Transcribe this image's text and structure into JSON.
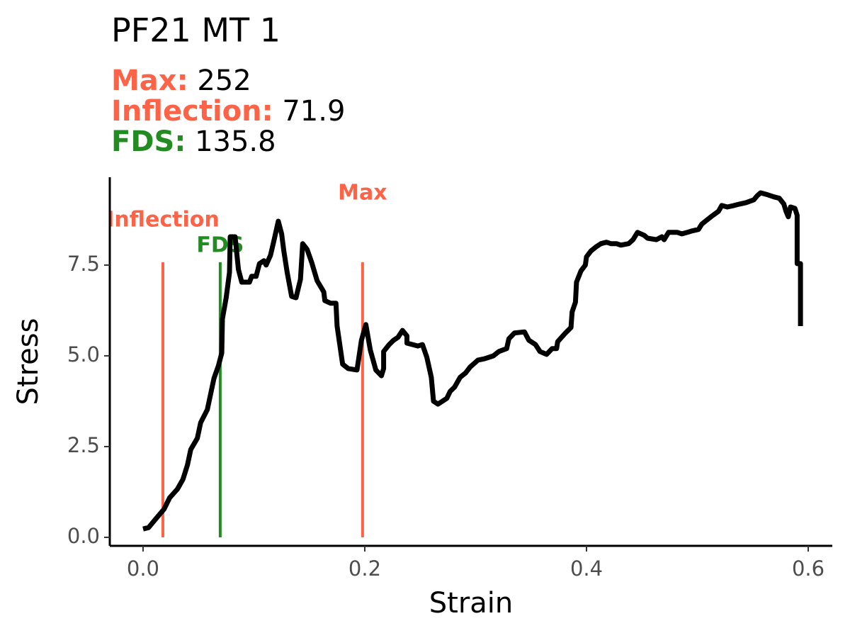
{
  "chart_data": {
    "type": "line",
    "title": "PF21 MT 1",
    "subtitle": [
      {
        "label": "Max:",
        "value": 252,
        "color": "#ff6347"
      },
      {
        "label": "Inflection:",
        "value": 71.9,
        "color": "#ff6347"
      },
      {
        "label": "FDS:",
        "value": 135.8,
        "color": "#228b22"
      }
    ],
    "x_label": "Strain",
    "y_label": "Stress",
    "xlim": [
      -0.03,
      0.6217
    ],
    "ylim": [
      -0.234,
      9.92
    ],
    "xticks": [
      {
        "value": 0,
        "label": "0.0"
      },
      0.2,
      0.4,
      0.6
    ],
    "yticks": [
      {
        "value": 0,
        "label": "0.0"
      },
      2.5,
      {
        "value": 5,
        "label": "5.0"
      },
      7.5
    ],
    "grid": false,
    "annotations": [
      {
        "label": "Inflection",
        "x": 0.0179,
        "y": [
          0,
          7.58
        ],
        "label_y": 8.73,
        "color": "#ff6347"
      },
      {
        "label": "FDS",
        "x": 0.0696,
        "y": [
          0,
          7.58
        ],
        "label_y": 8.03,
        "color": "#228b22"
      },
      {
        "label": "Max",
        "x": 0.198,
        "y": [
          0,
          7.58
        ],
        "label_y": 9.47,
        "color": "#ff6347"
      }
    ],
    "series": [
      {
        "color": "#000000",
        "x": [
          0.0,
          0.005,
          0.0115,
          0.019,
          0.024,
          0.031,
          0.036,
          0.04,
          0.043,
          0.049,
          0.052,
          0.058,
          0.061,
          0.064,
          0.068,
          0.071,
          0.0716,
          0.075,
          0.078,
          0.0786,
          0.083,
          0.086,
          0.089,
          0.096,
          0.098,
          0.102,
          0.105,
          0.109,
          0.111,
          0.115,
          0.118,
          0.122,
          0.125,
          0.127,
          0.13,
          0.134,
          0.138,
          0.142,
          0.144,
          0.148,
          0.152,
          0.157,
          0.163,
          0.164,
          0.169,
          0.174,
          0.175,
          0.18,
          0.185,
          0.193,
          0.197,
          0.201,
          0.205,
          0.21,
          0.215,
          0.217,
          0.217,
          0.222,
          0.226,
          0.23,
          0.234,
          0.238,
          0.238,
          0.248,
          0.252,
          0.256,
          0.26,
          0.262,
          0.266,
          0.274,
          0.277,
          0.281,
          0.286,
          0.291,
          0.295,
          0.302,
          0.308,
          0.316,
          0.321,
          0.328,
          0.33,
          0.335,
          0.344,
          0.348,
          0.354,
          0.358,
          0.364,
          0.369,
          0.373,
          0.374,
          0.381,
          0.386,
          0.387,
          0.39,
          0.391,
          0.395,
          0.399,
          0.4,
          0.404,
          0.409,
          0.413,
          0.418,
          0.422,
          0.427,
          0.431,
          0.438,
          0.442,
          0.446,
          0.452,
          0.455,
          0.463,
          0.468,
          0.47,
          0.474,
          0.482,
          0.486,
          0.491,
          0.495,
          0.501,
          0.504,
          0.509,
          0.514,
          0.519,
          0.522,
          0.527,
          0.533,
          0.538,
          0.544,
          0.551,
          0.554,
          0.557,
          0.562,
          0.569,
          0.574,
          0.578,
          0.58,
          0.582,
          0.584,
          0.588,
          0.59,
          0.59,
          0.593,
          0.593
        ],
        "values": [
          0.23,
          0.27,
          0.51,
          0.78,
          1.09,
          1.33,
          1.6,
          1.99,
          2.42,
          2.73,
          3.16,
          3.52,
          3.95,
          4.38,
          4.73,
          5.08,
          6.02,
          6.6,
          7.3,
          8.28,
          8.28,
          7.38,
          7.03,
          7.03,
          7.19,
          7.19,
          7.54,
          7.62,
          7.5,
          7.77,
          8.16,
          8.71,
          8.36,
          7.89,
          7.3,
          6.64,
          6.6,
          7.11,
          8.09,
          7.93,
          7.58,
          7.07,
          6.76,
          6.52,
          6.45,
          6.45,
          5.82,
          4.77,
          4.65,
          4.61,
          5.43,
          5.86,
          5.16,
          4.61,
          4.45,
          4.65,
          5.12,
          5.31,
          5.43,
          5.51,
          5.7,
          5.55,
          5.35,
          5.27,
          5.31,
          4.96,
          4.41,
          3.75,
          3.67,
          3.83,
          4.02,
          4.14,
          4.41,
          4.53,
          4.69,
          4.88,
          4.92,
          5.0,
          5.12,
          5.2,
          5.47,
          5.63,
          5.66,
          5.43,
          5.31,
          5.12,
          5.04,
          5.2,
          5.2,
          5.39,
          5.63,
          5.78,
          6.21,
          6.48,
          7.03,
          7.34,
          7.5,
          7.73,
          7.89,
          8.01,
          8.09,
          8.13,
          8.09,
          8.09,
          8.05,
          8.09,
          8.2,
          8.4,
          8.32,
          8.24,
          8.2,
          8.28,
          8.2,
          8.4,
          8.4,
          8.36,
          8.4,
          8.44,
          8.48,
          8.63,
          8.75,
          8.87,
          8.98,
          9.14,
          9.1,
          9.14,
          9.18,
          9.22,
          9.3,
          9.41,
          9.49,
          9.45,
          9.38,
          9.34,
          9.18,
          8.98,
          8.83,
          9.1,
          9.06,
          8.87,
          7.54,
          7.54,
          5.82
        ]
      }
    ]
  }
}
